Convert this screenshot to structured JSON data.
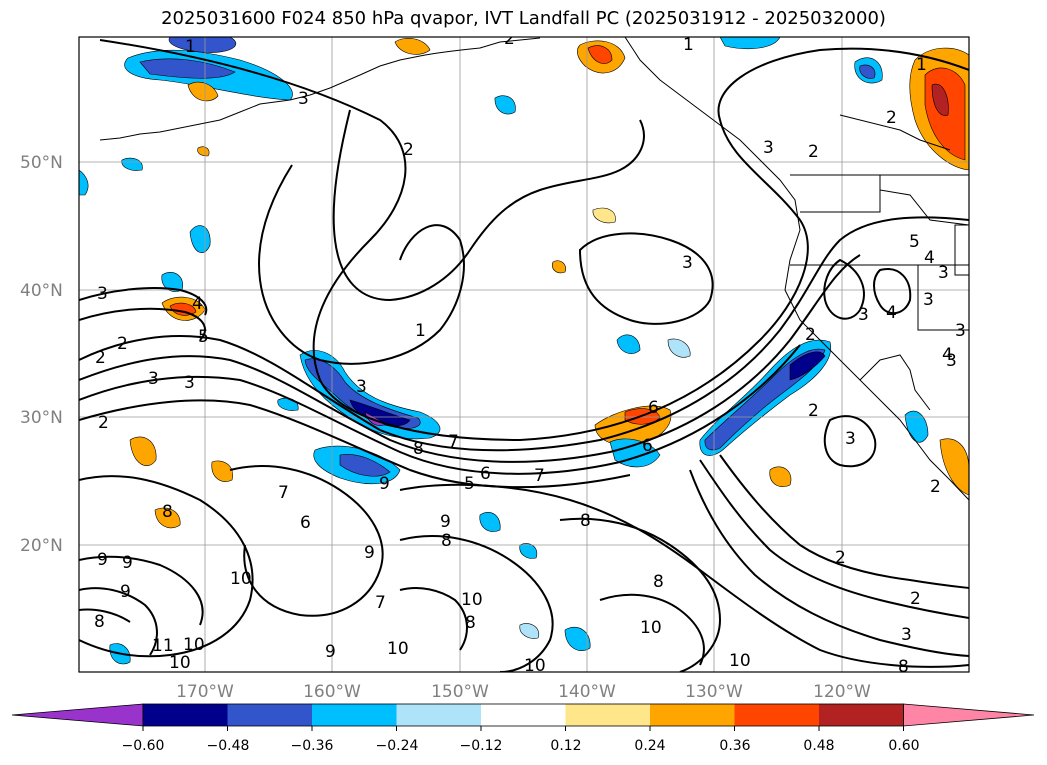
{
  "title": "2025031600 F024 850 hPa qvapor, IVT Landfall PC (2025031912 - 2025032000)",
  "lat_labels": [
    "50°N",
    "40°N",
    "30°N",
    "20°N"
  ],
  "lon_labels": [
    "170°W",
    "160°W",
    "150°W",
    "140°W",
    "130°W",
    "120°W"
  ],
  "colorbar": {
    "ticks": [
      "−0.60",
      "−0.48",
      "−0.36",
      "−0.24",
      "−0.12",
      "0.12",
      "0.24",
      "0.36",
      "0.48",
      "0.60"
    ],
    "colors": [
      "#9933cc",
      "#00008b",
      "#3355cc",
      "#00bfff",
      "#aee3fa",
      "#ffffff",
      "#ffe68a",
      "#ffa500",
      "#ff4500",
      "#b22222",
      "#ff85a6"
    ]
  },
  "contour_labels": [
    "1",
    "1",
    "2",
    "2",
    "1",
    "3",
    "3",
    "2",
    "2",
    "3",
    "3",
    "4",
    "5",
    "4",
    "3",
    "3",
    "3",
    "2",
    "2",
    "1",
    "5",
    "3",
    "3",
    "2",
    "2",
    "7",
    "8",
    "6",
    "5",
    "7",
    "6",
    "6",
    "8",
    "9",
    "9",
    "8",
    "9",
    "8",
    "9",
    "10",
    "7",
    "6",
    "7",
    "10",
    "9",
    "10",
    "10",
    "9",
    "10",
    "8",
    "10",
    "8",
    "10",
    "11",
    "10",
    "9",
    "8",
    "8",
    "2",
    "2",
    "3",
    "3",
    "2",
    "3",
    "4",
    "3",
    "3",
    "4",
    "2"
  ]
}
